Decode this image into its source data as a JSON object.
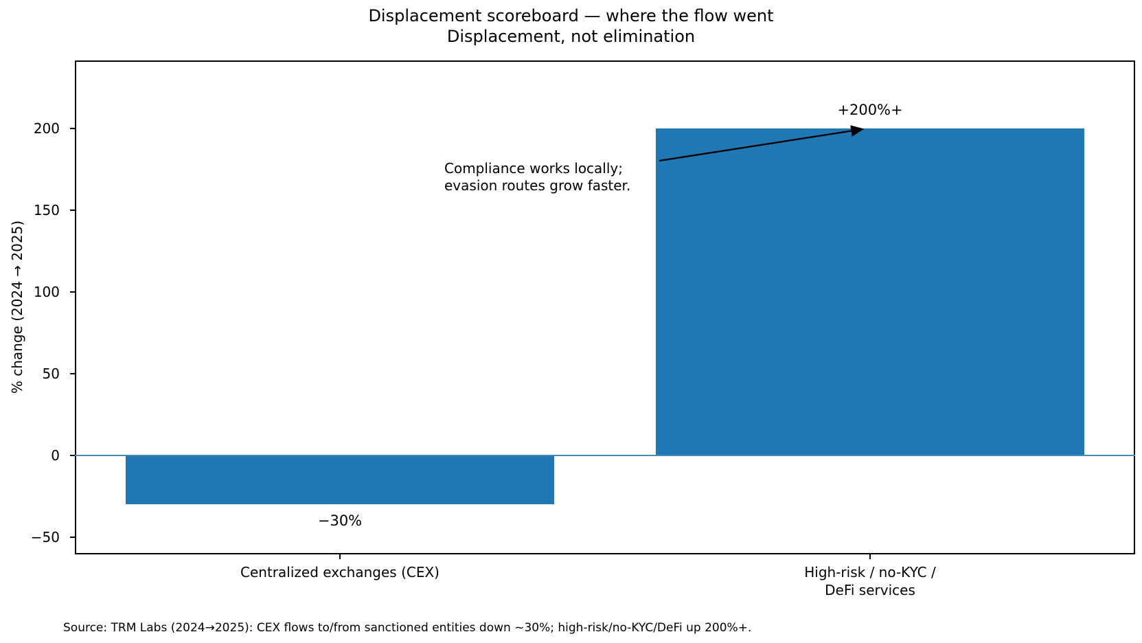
{
  "figure": {
    "title_line1": "Displacement scoreboard — where the flow went",
    "title_line2": "Displacement, not elimination"
  },
  "chart_data": {
    "type": "bar",
    "title": "Displacement scoreboard — where the flow went\nDisplacement, not elimination",
    "xlabel": "",
    "ylabel": "% change (2024 → 2025)",
    "categories": [
      "Centralized exchanges (CEX)",
      "High-risk / no-KYC /\nDeFi services"
    ],
    "values": [
      -30,
      200
    ],
    "bar_value_labels": [
      "−30%",
      "+200%+"
    ],
    "ytick_values": [
      200,
      150,
      100,
      50,
      0,
      -50
    ],
    "ytick_labels": [
      "200",
      "150",
      "100",
      "50",
      "0",
      "−50"
    ],
    "ylim": [
      -60.5,
      241.6
    ],
    "grid": false,
    "legend": false,
    "bar_color": "#1f77b4",
    "zero_line_color": "#4a8ab5",
    "annotation_text": "Compliance works locally;\nevasion routes grow faster.",
    "source_note": "Source: TRM Labs (2024→2025): CEX flows to/from sanctioned entities down ~30%; high-risk/no-KYC/DeFi up 200%+."
  }
}
